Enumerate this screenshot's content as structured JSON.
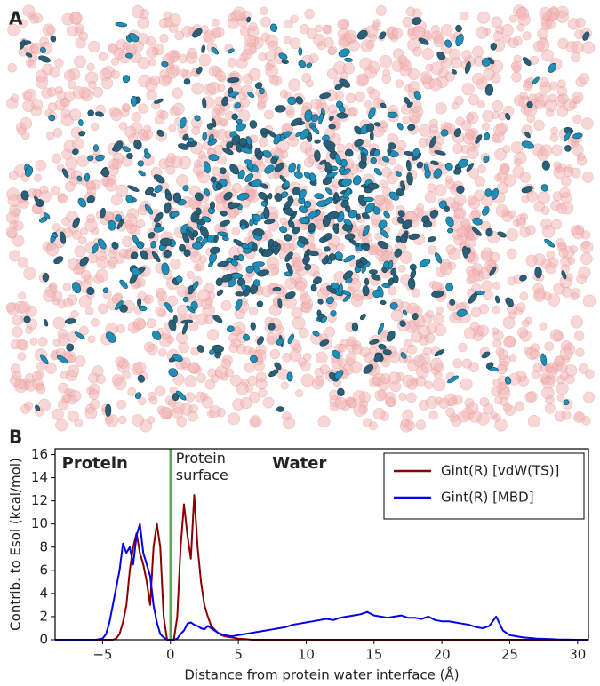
{
  "panel_labels": [
    "A",
    "B"
  ],
  "chart_data": {
    "type": "line",
    "xlabel": "Distance from protein water interface (Å)",
    "ylabel": "Contrib. to Esol (kcal/mol)",
    "annotations": [
      {
        "text": "Protein",
        "x": -8,
        "color": "#8a8a8a"
      },
      {
        "text": "Water",
        "x": 7.5,
        "color": "#8a8a8a"
      }
    ],
    "vline": {
      "x": 0,
      "color": "#5aa55a",
      "text": [
        "Protein",
        "surface"
      ]
    },
    "xlim": [
      -8.5,
      30.8
    ],
    "ylim": [
      0,
      16.5
    ],
    "xticks": [
      {
        "value": -5,
        "label": "−5"
      },
      0,
      5,
      10,
      15,
      20,
      25,
      30
    ],
    "yticks": [
      0,
      2,
      4,
      6,
      8,
      10,
      12,
      14,
      16
    ],
    "legend": "upper right",
    "x": [
      -8.5,
      -7,
      -6,
      -5.5,
      -5,
      -4.75,
      -4.5,
      -4.25,
      -4,
      -3.75,
      -3.5,
      -3.25,
      -3,
      -2.75,
      -2.5,
      -2.25,
      -2,
      -1.75,
      -1.5,
      -1.25,
      -1,
      -0.75,
      -0.5,
      -0.25,
      0,
      0.25,
      0.5,
      0.75,
      1,
      1.25,
      1.5,
      1.75,
      2,
      2.25,
      2.5,
      2.75,
      3,
      3.25,
      3.5,
      3.75,
      4,
      4.5,
      5,
      5.5,
      6,
      6.5,
      7,
      7.5,
      8,
      8.5,
      9,
      9.5,
      10,
      10.5,
      11,
      11.5,
      12,
      12.5,
      13,
      13.5,
      14,
      14.5,
      15,
      15.5,
      16,
      16.5,
      17,
      17.5,
      18,
      18.5,
      19,
      19.5,
      20,
      20.5,
      21,
      21.5,
      22,
      22.5,
      23,
      23.5,
      24,
      24.5,
      25,
      25.5,
      26,
      26.5,
      27,
      27.5,
      28,
      28.5,
      29,
      29.5,
      30,
      30.5,
      30.75
    ],
    "series": [
      {
        "name": "Gint(R) [vdW(TS)]",
        "color": "#8b0000",
        "values": [
          0,
          0,
          0,
          0,
          0,
          0,
          0,
          0,
          0.1,
          0.5,
          1.5,
          3,
          6,
          8,
          9.2,
          7.5,
          6.5,
          5,
          3,
          8,
          10,
          8,
          2,
          0,
          0,
          0,
          2,
          8,
          11.7,
          9,
          7,
          12.5,
          8,
          5,
          3,
          2,
          1.2,
          0.9,
          0.6,
          0.4,
          0.3,
          0.2,
          0.1,
          0.05,
          0,
          0,
          0,
          0,
          0,
          0,
          0,
          0,
          0,
          0,
          0,
          0,
          0,
          0,
          0,
          0,
          0,
          0,
          0,
          0,
          0,
          0,
          0,
          0,
          0,
          0,
          0,
          0,
          0,
          0,
          0,
          0,
          0,
          0,
          0,
          0,
          0,
          0,
          0,
          0,
          0,
          0,
          0,
          0,
          0,
          0,
          0,
          0,
          0,
          0,
          0
        ]
      },
      {
        "name": "Gint(R) [MBD]",
        "color": "#0000ee",
        "values": [
          0,
          0,
          0,
          0,
          0.1,
          0.5,
          1.5,
          3,
          4.5,
          6,
          8.3,
          7.5,
          8,
          6.5,
          9,
          10,
          7.5,
          6.5,
          5.5,
          3,
          1.5,
          0.5,
          0.2,
          0,
          0,
          0,
          0.1,
          0.5,
          0.8,
          1.4,
          1.5,
          1.3,
          1.2,
          1,
          0.9,
          1.2,
          1,
          0.8,
          0.6,
          0.5,
          0.4,
          0.3,
          0.4,
          0.5,
          0.6,
          0.7,
          0.8,
          0.9,
          1,
          1.1,
          1.3,
          1.4,
          1.5,
          1.6,
          1.7,
          1.8,
          1.7,
          1.9,
          2,
          2.1,
          2.2,
          2.4,
          2.1,
          2,
          1.9,
          2,
          2.1,
          1.9,
          1.9,
          1.8,
          2,
          1.7,
          1.6,
          1.6,
          1.5,
          1.4,
          1.3,
          1.1,
          1,
          1.2,
          2,
          0.8,
          0.4,
          0.3,
          0.2,
          0.15,
          0.1,
          0.08,
          0.05,
          0.03,
          0.02,
          0.01,
          0,
          0,
          0
        ]
      }
    ]
  }
}
